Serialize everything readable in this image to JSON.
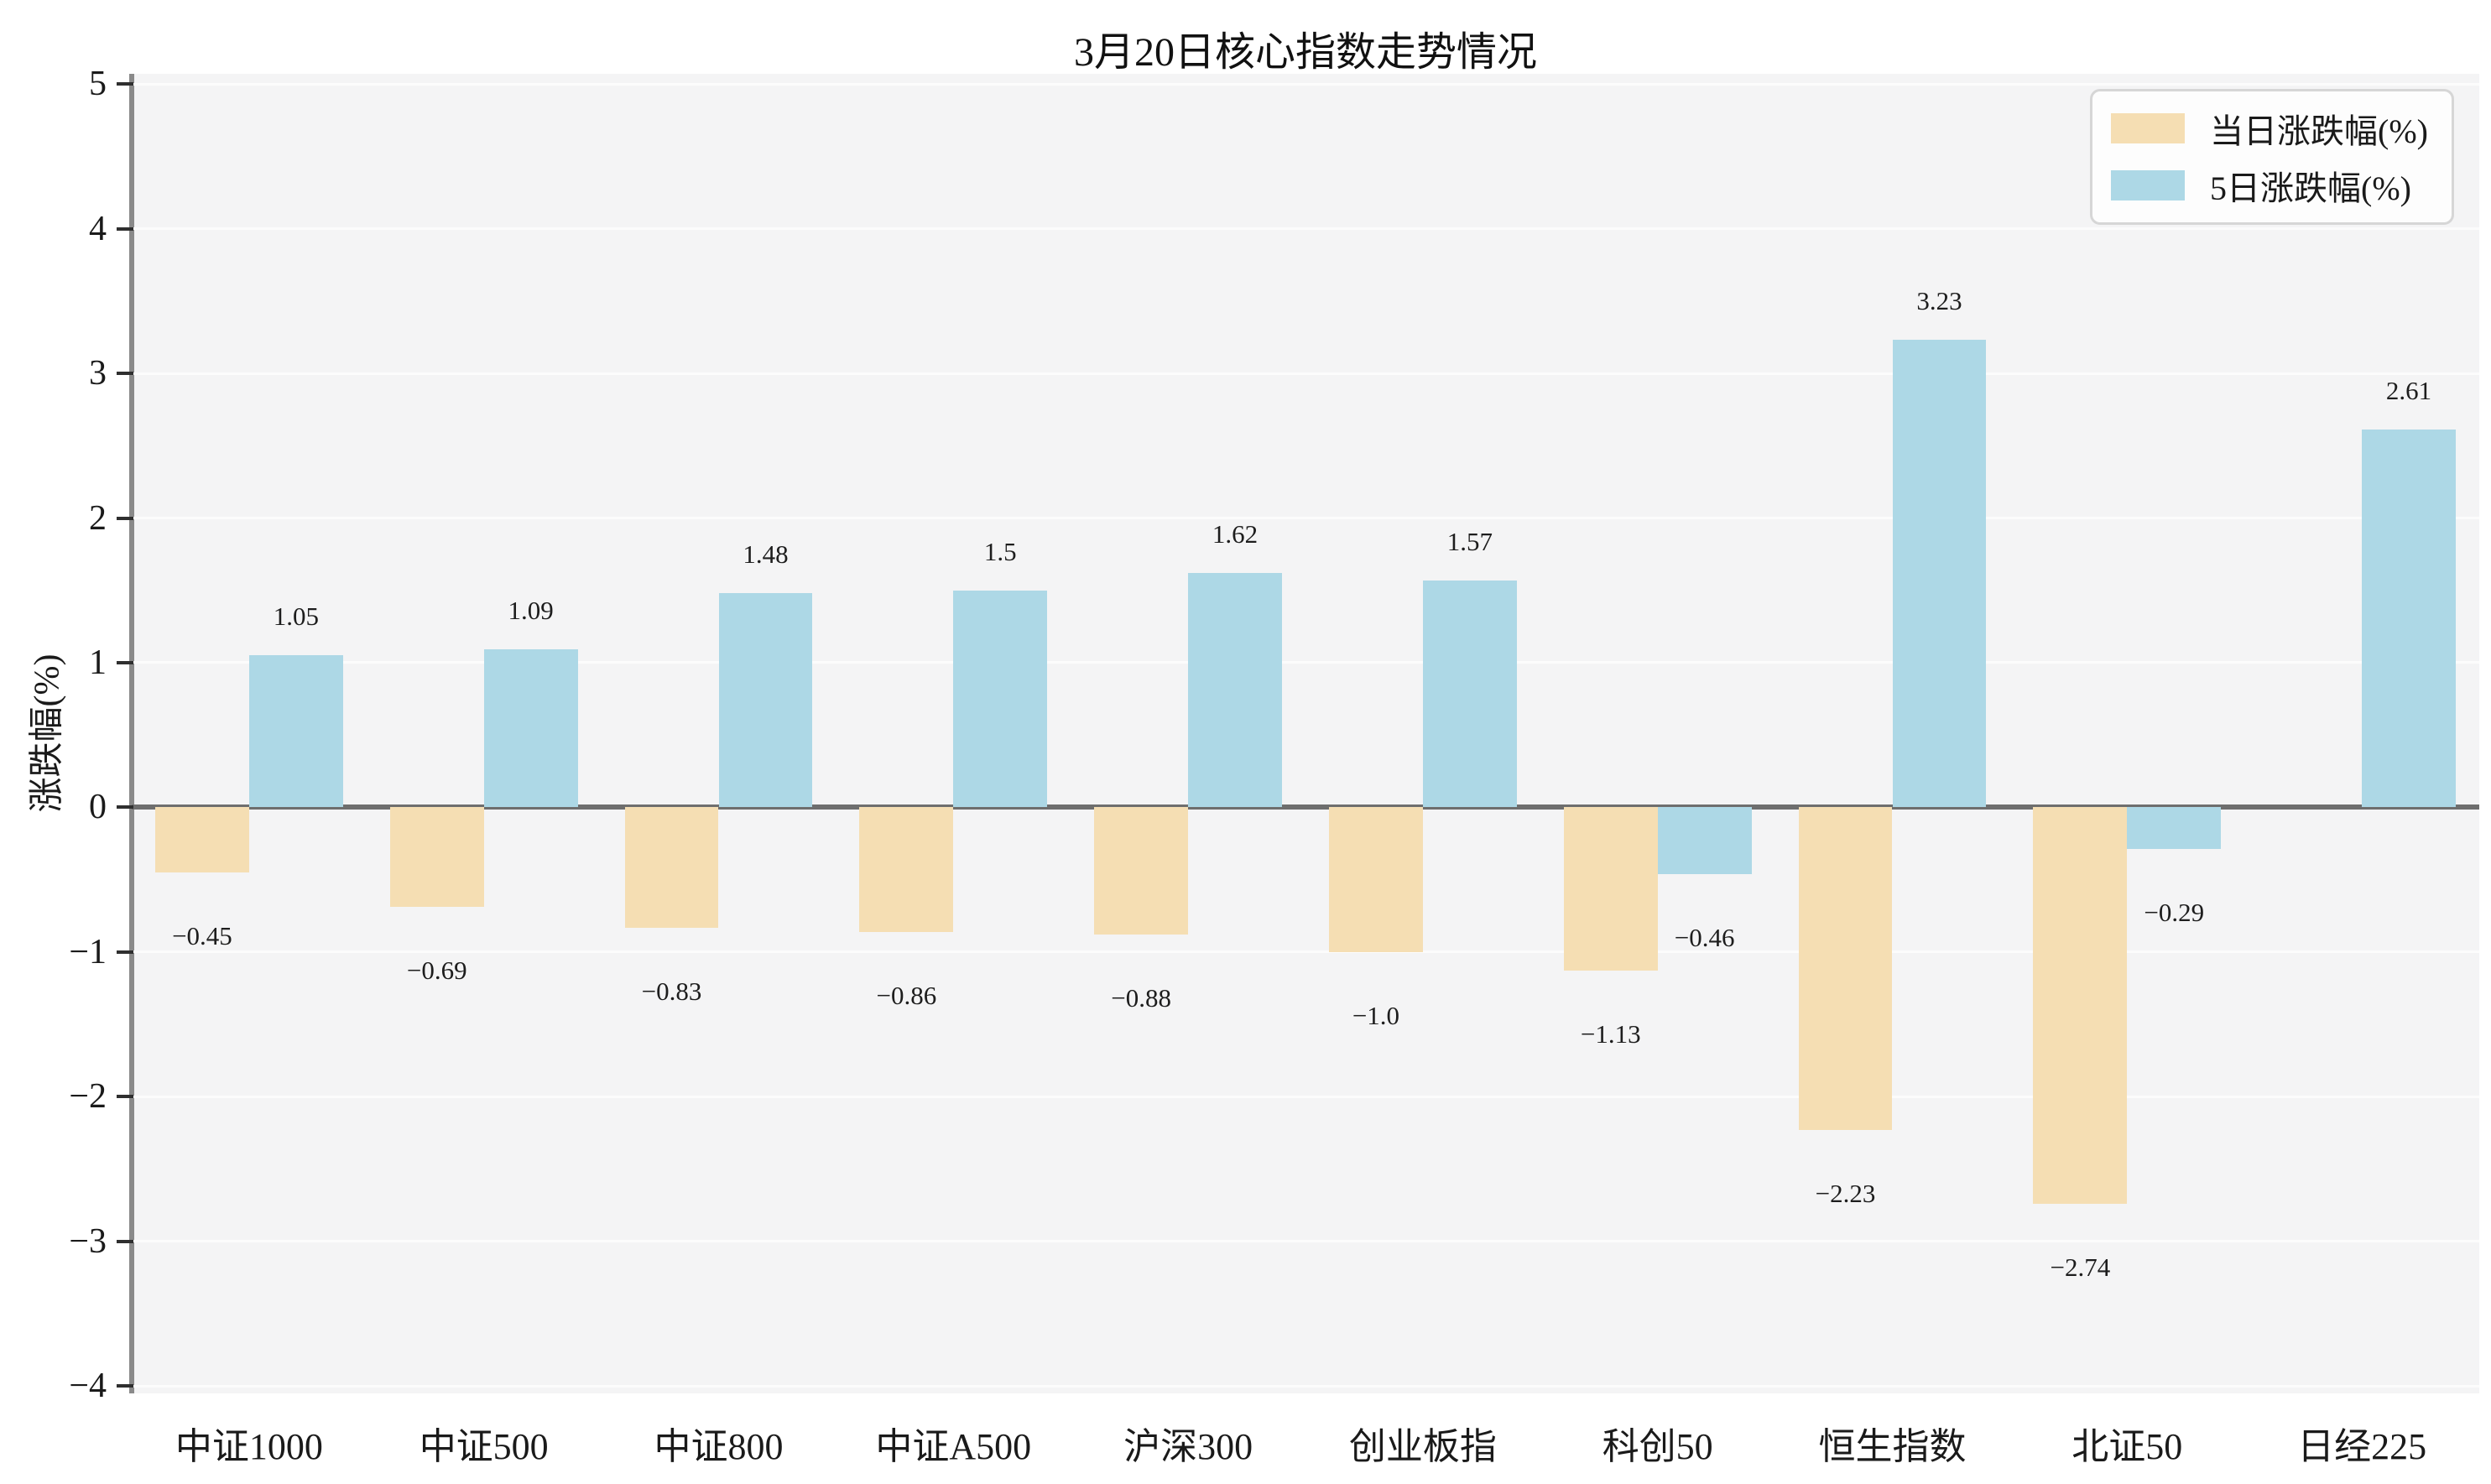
{
  "chart_data": {
    "type": "bar",
    "title": "3月20日核心指数走势情况",
    "ylabel": "涨跌幅(%)",
    "categories": [
      "中证1000",
      "中证500",
      "中证800",
      "中证A500",
      "沪深300",
      "创业板指",
      "科创50",
      "恒生指数",
      "北证50",
      "日经225"
    ],
    "series": [
      {
        "name": "当日涨跌幅(%)",
        "color": "#f5deb3",
        "values": [
          -0.45,
          -0.69,
          -0.83,
          -0.86,
          -0.88,
          -1.0,
          -1.13,
          -2.23,
          -2.74,
          null
        ],
        "labels": [
          "−0.45",
          "−0.69",
          "−0.83",
          "−0.86",
          "−0.88",
          "−1.0",
          "−1.13",
          "−2.23",
          "−2.74",
          null
        ]
      },
      {
        "name": "5日涨跌幅(%)",
        "color": "#add8e6",
        "values": [
          1.05,
          1.09,
          1.48,
          1.5,
          1.62,
          1.57,
          -0.46,
          3.23,
          -0.29,
          2.61
        ],
        "labels": [
          "1.05",
          "1.09",
          "1.48",
          "1.5",
          "1.62",
          "1.57",
          "−0.46",
          "3.23",
          "−0.29",
          "2.61"
        ]
      }
    ],
    "ylim": [
      -4.05,
      5.07
    ],
    "yticks": [
      -4,
      -3,
      -2,
      -1,
      0,
      1,
      2,
      3,
      4,
      5
    ],
    "grid": "horizontal",
    "legend_position": "upper-right",
    "plot_bg_color": "#f4f4f5",
    "gridline_color": "#fcfcfc",
    "zero_line_color": "#6e6e6e",
    "axis_color": "#8a8a8a",
    "bar_group_width_ratio": 0.8
  }
}
